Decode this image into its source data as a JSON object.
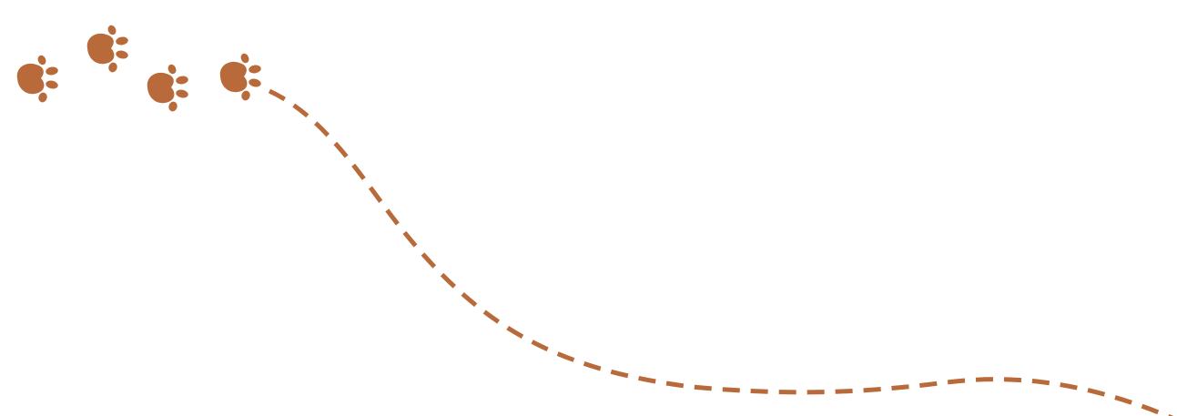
{
  "illustration": {
    "accent_color": "#B96A3A",
    "background_color": "#FFFFFF",
    "paw_icon": "paw-print-icon",
    "paw_print_count": 4,
    "trail_style": "dashed"
  }
}
